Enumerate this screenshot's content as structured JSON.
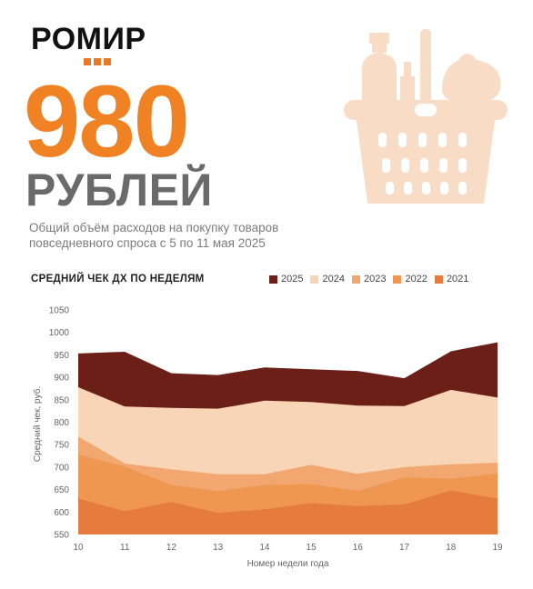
{
  "brand": {
    "name": "РОМИР"
  },
  "headline": {
    "value": "980",
    "unit": "РУБЛЕЙ",
    "description": "Общий объём расходов на покупку товаров повседневного спроса с 5 по 11 мая 2025"
  },
  "illustration": {
    "icon": "grocery-basket-icon",
    "color": "#f9dcc6"
  },
  "colors": {
    "2025": "#6b1f16",
    "2024": "#f7d5b6",
    "2023": "#f2a770",
    "2022": "#ef9650",
    "2021": "#e57b3c",
    "accent": "#f08224"
  },
  "chart_data": {
    "type": "area",
    "title": "СРЕДНИЙ ЧЕК ДХ ПО НЕДЕЛЯМ",
    "xlabel": "Номер недели года",
    "ylabel": "Средний чек, руб.",
    "ylim": [
      550,
      1050
    ],
    "yticks": [
      550,
      600,
      650,
      700,
      750,
      800,
      850,
      900,
      950,
      1000,
      1050
    ],
    "grid": false,
    "legend_position": "top-right",
    "x": [
      10,
      11,
      12,
      13,
      14,
      15,
      16,
      17,
      18,
      19
    ],
    "series": [
      {
        "name": "2025",
        "values": [
          953,
          957,
          909,
          905,
          922,
          918,
          914,
          898,
          958,
          978
        ]
      },
      {
        "name": "2024",
        "values": [
          878,
          835,
          832,
          830,
          848,
          845,
          837,
          836,
          872,
          855
        ]
      },
      {
        "name": "2023",
        "values": [
          768,
          708,
          695,
          684,
          684,
          705,
          685,
          700,
          706,
          710
        ]
      },
      {
        "name": "2022",
        "values": [
          728,
          701,
          660,
          647,
          660,
          662,
          647,
          677,
          674,
          686
        ]
      },
      {
        "name": "2021",
        "values": [
          630,
          602,
          622,
          598,
          606,
          620,
          613,
          617,
          648,
          630
        ]
      }
    ]
  }
}
